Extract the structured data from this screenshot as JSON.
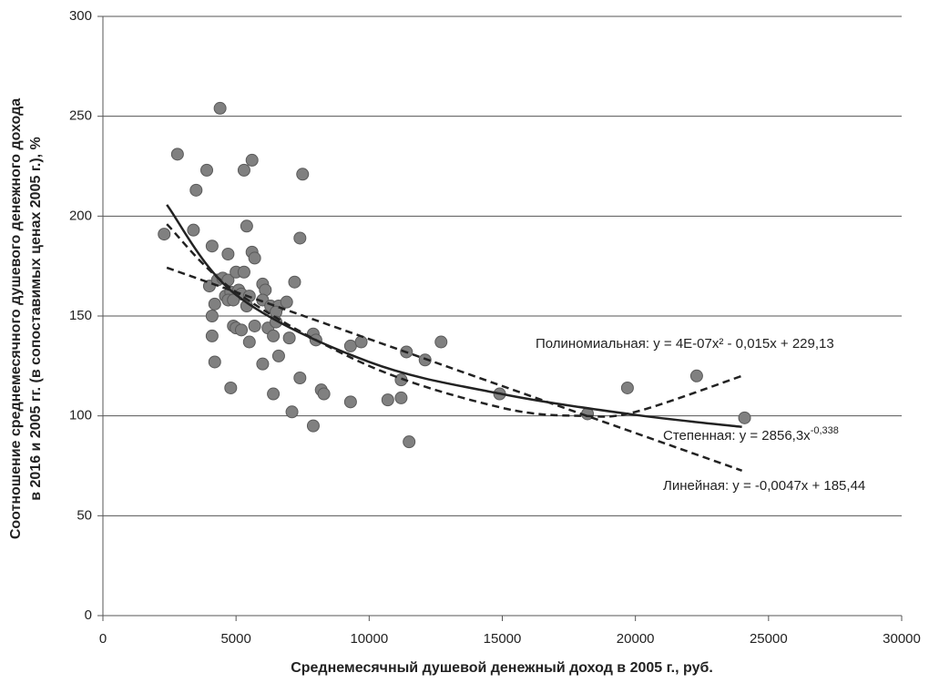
{
  "chart_data": {
    "type": "scatter",
    "xlabel": "Среднемесячный душевой денежный доход в 2005 г., руб.",
    "ylabel": [
      "Соотношение среднемесячного душевого денежного дохода",
      "в 2016 и 2005 гг. (в сопоставимых ценах 2005 г.), %"
    ],
    "xlim": [
      0,
      30000
    ],
    "ylim": [
      0,
      300
    ],
    "xticks": [
      0,
      5000,
      10000,
      15000,
      20000,
      25000,
      30000
    ],
    "yticks": [
      0,
      50,
      100,
      150,
      200,
      250,
      300
    ],
    "grid": true,
    "color": "#808080",
    "x": [
      2300,
      2800,
      3400,
      3500,
      3900,
      4400,
      5300,
      5600,
      7500,
      4100,
      4700,
      5400,
      7400,
      5600,
      5700,
      4000,
      4300,
      4500,
      4700,
      5000,
      5300,
      6000,
      6100,
      7200,
      4200,
      4600,
      4800,
      5100,
      5200,
      5500,
      5400,
      4100,
      4700,
      4900,
      6000,
      6300,
      6600,
      6900,
      6500,
      4100,
      4900,
      5000,
      5200,
      5500,
      5700,
      6200,
      6400,
      6500,
      7000,
      7900,
      8000,
      4200,
      6000,
      6600,
      9300,
      9700,
      11400,
      12100,
      12700,
      7400,
      4800,
      6400,
      8200,
      8300,
      7100,
      7900,
      9300,
      10700,
      11200,
      11200,
      11500,
      14900,
      18200,
      19700,
      22300,
      24100
    ],
    "y": [
      191,
      231,
      193,
      213,
      223,
      254,
      223,
      228,
      221,
      185,
      181,
      195,
      189,
      182,
      179,
      165,
      168,
      169,
      168,
      172,
      172,
      166,
      163,
      167,
      156,
      160,
      162,
      163,
      161,
      160,
      155,
      150,
      158,
      158,
      158,
      155,
      155,
      157,
      152,
      140,
      145,
      144,
      143,
      137,
      145,
      144,
      140,
      147,
      139,
      141,
      138,
      127,
      126,
      130,
      135,
      137,
      132,
      128,
      137,
      119,
      114,
      111,
      113,
      111,
      102,
      95,
      107,
      108,
      109,
      118,
      87,
      111,
      101,
      114,
      120,
      99
    ],
    "trendlines": [
      {
        "label": "Полиномиальная: y = 4E-07x² - 0,015x + 229,13",
        "x": [
          2400,
          5000,
          10000,
          15000,
          18000,
          20000,
          24000
        ],
        "y": [
          196,
          162,
          125,
          104,
          100,
          102,
          120
        ]
      },
      {
        "label": "Степенная: y = 2856,3x",
        "label_sup": "-0,338",
        "x": [
          2400,
          5000,
          10000,
          15000,
          20000,
          24000
        ],
        "y": [
          205.7,
          160.6,
          127,
          110.9,
          100.5,
          94.5
        ]
      },
      {
        "label": "Линейная: y = -0,0047x + 185,44",
        "x": [
          2400,
          24000
        ],
        "y": [
          174.2,
          72.6
        ]
      }
    ]
  }
}
